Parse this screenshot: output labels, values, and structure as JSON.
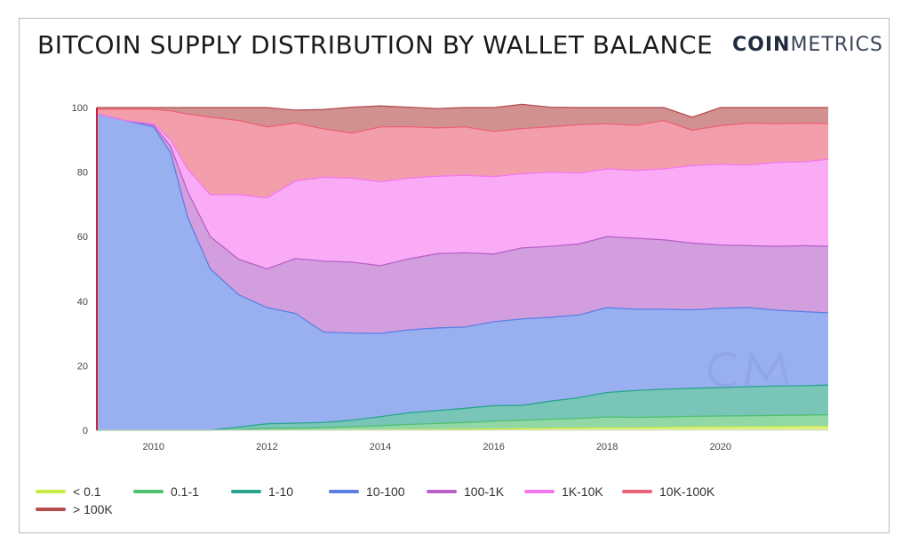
{
  "header": {
    "title": "BITCOIN SUPPLY DISTRIBUTION BY WALLET BALANCE",
    "brand_bold": "COIN",
    "brand_light": "METRICS"
  },
  "chart_data": {
    "type": "area",
    "stacked": true,
    "x": [
      2009.0,
      2009.5,
      2010.0,
      2010.3,
      2010.6,
      2011.0,
      2011.5,
      2012.0,
      2012.5,
      2013.0,
      2013.5,
      2014.0,
      2014.5,
      2015.0,
      2015.5,
      2016.0,
      2016.5,
      2017.0,
      2017.5,
      2018.0,
      2018.5,
      2019.0,
      2019.5,
      2020.0,
      2020.5,
      2021.0,
      2021.5,
      2021.9
    ],
    "ylim": [
      0,
      100
    ],
    "xlim": [
      2009.0,
      2021.9
    ],
    "x_ticks": [
      2010,
      2012,
      2014,
      2016,
      2018,
      2020
    ],
    "y_ticks": [
      0,
      20,
      40,
      60,
      80,
      100
    ],
    "grid": false,
    "legend_position": "bottom",
    "series": [
      {
        "name": "< 0.1",
        "color": "#c8ea45",
        "values": [
          0,
          0,
          0,
          0,
          0,
          0,
          0,
          0,
          0,
          0,
          0.1,
          0.1,
          0.2,
          0.2,
          0.3,
          0.4,
          0.5,
          0.6,
          0.7,
          0.8,
          0.8,
          0.9,
          1.0,
          1.0,
          1.1,
          1.1,
          1.2,
          1.2
        ]
      },
      {
        "name": "0.1-1",
        "color": "#4fbf70",
        "values": [
          0,
          0,
          0,
          0,
          0,
          0,
          0.2,
          0.5,
          0.6,
          0.8,
          1.0,
          1.3,
          1.6,
          1.9,
          2.1,
          2.4,
          2.6,
          2.8,
          3.0,
          3.3,
          3.2,
          3.2,
          3.3,
          3.4,
          3.4,
          3.5,
          3.5,
          3.6
        ]
      },
      {
        "name": "1-10",
        "color": "#27a38e",
        "values": [
          0,
          0,
          0,
          0,
          0,
          0,
          0.8,
          1.5,
          1.6,
          1.6,
          2.0,
          2.8,
          3.6,
          4.0,
          4.4,
          4.8,
          4.6,
          5.6,
          6.4,
          7.6,
          8.3,
          8.6,
          8.7,
          8.8,
          9.0,
          9.1,
          9.1,
          9.2
        ]
      },
      {
        "name": "10-100",
        "color": "#5b7fe6",
        "values": [
          98,
          96,
          94,
          86,
          66,
          50,
          41,
          36,
          34,
          28,
          27,
          25.8,
          25.7,
          25.6,
          25.2,
          26,
          26.8,
          26,
          25.6,
          26.3,
          25.2,
          24.8,
          24.3,
          24.6,
          24.5,
          23.5,
          22.9,
          22.4
        ]
      },
      {
        "name": "100-1K",
        "color": "#b862c8",
        "values": [
          0,
          0,
          0.5,
          2,
          8,
          10,
          11,
          12,
          17,
          22,
          22,
          21,
          22,
          23,
          23,
          21,
          22,
          22,
          22,
          22,
          22,
          21.5,
          20.7,
          19.6,
          19.2,
          19.8,
          20.5,
          20.6
        ]
      },
      {
        "name": "1K-10K",
        "color": "#f577ef",
        "values": [
          0,
          0,
          0.5,
          2,
          7,
          13,
          20,
          22,
          24,
          26,
          26,
          26,
          25,
          24,
          24,
          24,
          23,
          23,
          22,
          21,
          21,
          22,
          24,
          25,
          25,
          26,
          26,
          27
        ]
      },
      {
        "name": "10K-100K",
        "color": "#eb6278",
        "values": [
          1.5,
          3.5,
          4.5,
          9,
          17,
          24,
          23,
          22,
          18,
          15,
          14,
          17,
          16,
          15,
          15,
          14,
          14,
          14,
          15,
          14,
          14,
          15,
          11,
          12,
          13,
          12,
          12,
          11
        ]
      },
      {
        "name": "> 100K",
        "color": "#b54d4d",
        "values": [
          0.5,
          0.5,
          0.5,
          1,
          2,
          3,
          4,
          6,
          4,
          6,
          8,
          6.5,
          6,
          6,
          6,
          7.4,
          7.5,
          6.1,
          5.3,
          5,
          5.5,
          4,
          4,
          5.6,
          4.8,
          5,
          4.8,
          5
        ]
      }
    ]
  }
}
